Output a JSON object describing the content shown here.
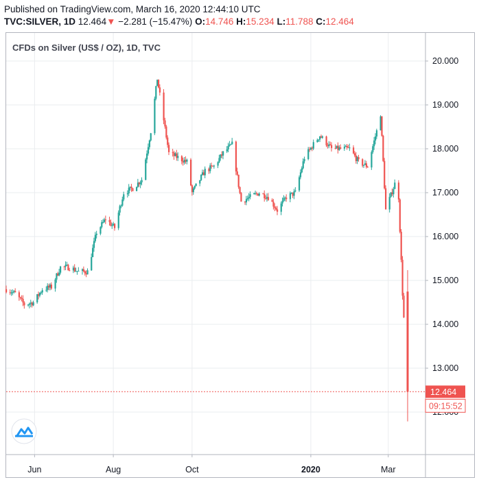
{
  "header": {
    "published": "Published on TradingView.com, March 16, 2020 12:44:10 UTC",
    "symbol": "TVC:SILVER, 1D",
    "last": "12.464",
    "down_arrow": "▼",
    "change": "−2.281 (−15.47%)",
    "o_label": "O:",
    "o_value": "14.746",
    "h_label": "H:",
    "h_value": "15.234",
    "l_label": "L:",
    "l_value": "11.788",
    "c_label": "C:",
    "c_value": "12.464"
  },
  "colors": {
    "up": "#26a69a",
    "down": "#ef5350",
    "grid": "#eaecef",
    "axis": "#b2b5be"
  },
  "chart_data": {
    "type": "candlestick",
    "title": "CFDs on Silver (US$ / OZ), 1D, TVC",
    "y_ticks": [
      "20.000",
      "19.000",
      "18.000",
      "17.000",
      "16.000",
      "15.000",
      "14.000",
      "13.000",
      "12.000"
    ],
    "ylim": [
      11.1,
      20.5
    ],
    "x_ticks": [
      {
        "label": "Jun",
        "bold": false
      },
      {
        "label": "Aug",
        "bold": false
      },
      {
        "label": "Oct",
        "bold": false
      },
      {
        "label": "2020",
        "bold": true
      },
      {
        "label": "Mar",
        "bold": false
      }
    ],
    "last_price_label": "12.464",
    "countdown_label": "09:15:52",
    "last_price": 12.464,
    "grid": true,
    "series_close_path": [
      [
        "2019-05-10",
        14.8
      ],
      [
        "2019-05-17",
        14.7
      ],
      [
        "2019-05-24",
        14.45
      ],
      [
        "2019-05-31",
        14.5
      ],
      [
        "2019-06-07",
        14.8
      ],
      [
        "2019-06-14",
        14.85
      ],
      [
        "2019-06-21",
        15.3
      ],
      [
        "2019-06-28",
        15.3
      ],
      [
        "2019-07-05",
        15.2
      ],
      [
        "2019-07-12",
        15.2
      ],
      [
        "2019-07-19",
        16.1
      ],
      [
        "2019-07-26",
        16.4
      ],
      [
        "2019-08-02",
        16.2
      ],
      [
        "2019-08-09",
        17.0
      ],
      [
        "2019-08-16",
        17.1
      ],
      [
        "2019-08-23",
        17.3
      ],
      [
        "2019-08-30",
        18.4
      ],
      [
        "2019-09-04",
        19.6
      ],
      [
        "2019-09-13",
        17.9
      ],
      [
        "2019-09-20",
        17.8
      ],
      [
        "2019-09-27",
        17.7
      ],
      [
        "2019-10-01",
        17.0
      ],
      [
        "2019-10-11",
        17.5
      ],
      [
        "2019-10-18",
        17.6
      ],
      [
        "2019-10-25",
        17.9
      ],
      [
        "2019-11-01",
        18.1
      ],
      [
        "2019-11-08",
        16.8
      ],
      [
        "2019-11-15",
        16.9
      ],
      [
        "2019-11-22",
        17.0
      ],
      [
        "2019-11-29",
        16.9
      ],
      [
        "2019-12-06",
        16.6
      ],
      [
        "2019-12-13",
        16.9
      ],
      [
        "2019-12-20",
        17.0
      ],
      [
        "2019-12-27",
        17.8
      ],
      [
        "2020-01-03",
        18.1
      ],
      [
        "2020-01-08",
        18.3
      ],
      [
        "2020-01-17",
        18.0
      ],
      [
        "2020-01-24",
        18.0
      ],
      [
        "2020-01-31",
        18.0
      ],
      [
        "2020-02-07",
        17.7
      ],
      [
        "2020-02-14",
        17.6
      ],
      [
        "2020-02-21",
        18.4
      ],
      [
        "2020-02-24",
        18.8
      ],
      [
        "2020-02-28",
        16.6
      ],
      [
        "2020-03-06",
        17.2
      ],
      [
        "2020-03-09",
        16.9
      ],
      [
        "2020-03-12",
        14.7
      ],
      [
        "2020-03-16",
        12.464
      ]
    ]
  }
}
